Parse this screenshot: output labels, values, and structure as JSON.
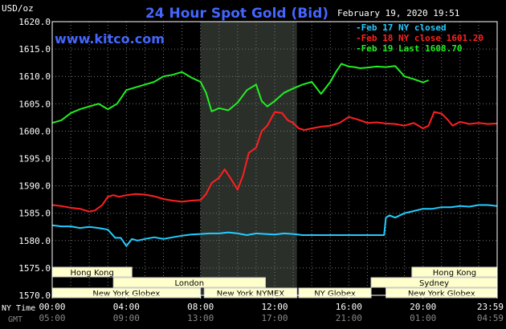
{
  "chart_data": {
    "type": "line",
    "title": "24 Hour Spot Gold (Bid)",
    "watermark": "www.kitco.com",
    "timestamp": "February 19, 2020 19:51",
    "ylabel": "USD/oz",
    "ylim": [
      1570,
      1620
    ],
    "yticks": [
      "1620.0",
      "1615.0",
      "1610.0",
      "1605.0",
      "1600.0",
      "1595.0",
      "1590.0",
      "1585.0",
      "1580.0",
      "1575.0",
      "1570.0"
    ],
    "xlim": [
      0,
      24
    ],
    "row_label_ny": "NY Time",
    "row_label_gmt": "GMT",
    "xticks_ny": [
      "00:00",
      "04:00",
      "08:00",
      "12:00",
      "16:00",
      "20:00",
      "23:59"
    ],
    "xticks_gmt": [
      "05:00",
      "09:00",
      "13:00",
      "17:00",
      "21:00",
      "01:00",
      "04:59"
    ],
    "shaded_hours": [
      8,
      13.2
    ],
    "sessions": [
      {
        "name": "Hong Kong",
        "row": 0,
        "start": 0,
        "end": 4.3
      },
      {
        "name": "London",
        "row": 1,
        "start": 3.3,
        "end": 11.5
      },
      {
        "name": "New York Globex",
        "row": 2,
        "start": 0,
        "end": 8
      },
      {
        "name": "New York NYMEX",
        "row": 2,
        "start": 8.2,
        "end": 13.2
      },
      {
        "name": "NY Globex",
        "row": 2,
        "start": 13.3,
        "end": 17.2
      },
      {
        "name": "Hong Kong",
        "row": 0,
        "start": 19.4,
        "end": 24
      },
      {
        "name": "Sydney",
        "row": 1,
        "start": 17.2,
        "end": 24
      },
      {
        "name": "New York Globex",
        "row": 2,
        "start": 18,
        "end": 24
      }
    ],
    "series": [
      {
        "name": "Feb 17 NY closed",
        "legend": "Feb 17 NY closed",
        "color": "#22ccff",
        "x": [
          0,
          0.5,
          1,
          1.5,
          2,
          2.5,
          3,
          3.4,
          3.7,
          4.0,
          4.3,
          4.6,
          5,
          5.5,
          6,
          6.5,
          7,
          7.5,
          8,
          8.5,
          9,
          9.5,
          10,
          10.5,
          11,
          11.5,
          12,
          12.5,
          13,
          13.5,
          14,
          15,
          16,
          17,
          17.5,
          17.9,
          18,
          18.2,
          18.5,
          19,
          19.5,
          20,
          20.5,
          21,
          21.5,
          22,
          22.5,
          23,
          23.5,
          24
        ],
        "values": [
          1582.8,
          1582.6,
          1582.6,
          1582.3,
          1582.5,
          1582.3,
          1582.0,
          1580.5,
          1580.5,
          1579.0,
          1580.3,
          1580.0,
          1580.3,
          1580.6,
          1580.3,
          1580.6,
          1580.9,
          1581.1,
          1581.2,
          1581.3,
          1581.3,
          1581.5,
          1581.3,
          1581.0,
          1581.3,
          1581.2,
          1581.1,
          1581.3,
          1581.2,
          1581.0,
          1581.0,
          1581.0,
          1581.0,
          1581.0,
          1581.0,
          1581.0,
          1584.2,
          1584.6,
          1584.2,
          1585.0,
          1585.4,
          1585.8,
          1585.8,
          1586.1,
          1586.1,
          1586.3,
          1586.2,
          1586.5,
          1586.5,
          1586.3
        ]
      },
      {
        "name": "Feb 18 NY close 1601.20",
        "legend": "Feb 18 NY close 1601.20",
        "color": "#ff2020",
        "x": [
          0,
          0.5,
          1,
          1.5,
          2,
          2.3,
          2.7,
          3,
          3.3,
          3.6,
          4,
          4.5,
          5,
          5.5,
          6,
          6.5,
          7,
          7.5,
          8,
          8.3,
          8.6,
          9,
          9.3,
          9.6,
          10,
          10.3,
          10.6,
          11,
          11.3,
          11.6,
          12,
          12.4,
          12.7,
          13,
          13.3,
          13.6,
          14,
          14.5,
          15,
          15.5,
          16,
          16.5,
          17,
          17.5,
          18,
          18.5,
          19,
          19.5,
          20,
          20.3,
          20.6,
          21,
          21.3,
          21.6,
          22,
          22.5,
          23,
          23.5,
          24
        ],
        "values": [
          1586.5,
          1586.3,
          1586.0,
          1585.8,
          1585.3,
          1585.5,
          1586.5,
          1588.0,
          1588.3,
          1588.0,
          1588.3,
          1588.5,
          1588.4,
          1588.1,
          1587.6,
          1587.3,
          1587.1,
          1587.3,
          1587.4,
          1588.5,
          1590.5,
          1591.5,
          1593.0,
          1591.5,
          1589.3,
          1592.0,
          1596.0,
          1597.0,
          1600.0,
          1601.0,
          1603.5,
          1603.3,
          1602.0,
          1601.5,
          1600.5,
          1600.2,
          1600.5,
          1600.8,
          1601.0,
          1601.5,
          1602.6,
          1602.1,
          1601.5,
          1601.6,
          1601.4,
          1601.3,
          1601.0,
          1601.5,
          1600.5,
          1601.0,
          1603.5,
          1603.2,
          1602.2,
          1601.0,
          1601.7,
          1601.3,
          1601.5,
          1601.3,
          1601.4
        ]
      },
      {
        "name": "Feb 19 Last 1608.70",
        "legend": "Feb 19 Last 1608.70",
        "color": "#22ee22",
        "x": [
          0,
          0.5,
          1,
          1.5,
          2,
          2.5,
          3,
          3.5,
          4,
          4.5,
          5,
          5.5,
          6,
          6.5,
          7,
          7.5,
          8,
          8.3,
          8.6,
          9,
          9.5,
          10,
          10.5,
          11,
          11.3,
          11.6,
          12,
          12.5,
          13,
          13.5,
          14,
          14.5,
          15,
          15.3,
          15.6,
          16,
          16.3,
          16.6,
          17,
          17.5,
          18,
          18.5,
          19,
          19.5,
          20,
          20.3
        ],
        "values": [
          1601.5,
          1602.0,
          1603.3,
          1604.0,
          1604.5,
          1605.0,
          1604.0,
          1605.0,
          1607.5,
          1608.0,
          1608.5,
          1609.0,
          1610.0,
          1610.3,
          1610.8,
          1609.8,
          1609.0,
          1607.0,
          1603.6,
          1604.2,
          1603.8,
          1605.2,
          1607.5,
          1608.5,
          1605.5,
          1604.5,
          1605.5,
          1607.0,
          1607.8,
          1608.5,
          1609.0,
          1606.8,
          1609.0,
          1610.8,
          1612.3,
          1611.8,
          1611.7,
          1611.5,
          1611.6,
          1611.8,
          1611.7,
          1611.9,
          1610.0,
          1609.5,
          1608.9,
          1609.3
        ]
      }
    ],
    "colors": {
      "background": "#000000",
      "plot_border": "#ffffff",
      "grid": "#777777",
      "shade": "#2a2f2a",
      "title": "#4466ff",
      "session_box_fill": "#ffffcc",
      "session_text": "#000000"
    },
    "grid": true,
    "legend_placement": "top-right"
  }
}
